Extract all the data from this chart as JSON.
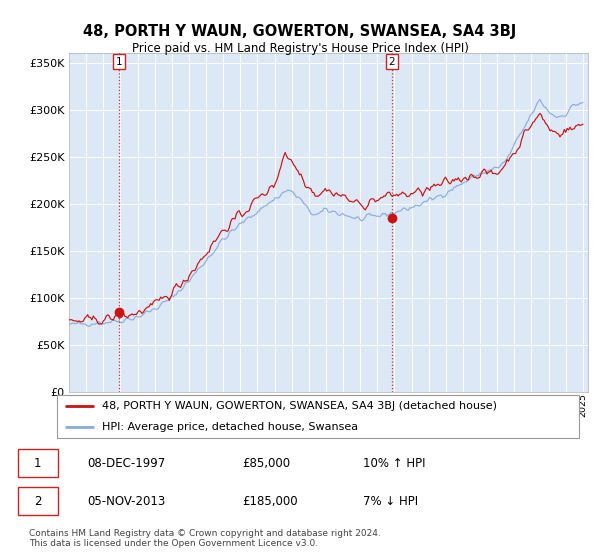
{
  "title": "48, PORTH Y WAUN, GOWERTON, SWANSEA, SA4 3BJ",
  "subtitle": "Price paid vs. HM Land Registry's House Price Index (HPI)",
  "legend_line1": "48, PORTH Y WAUN, GOWERTON, SWANSEA, SA4 3BJ (detached house)",
  "legend_line2": "HPI: Average price, detached house, Swansea",
  "transaction1_date": "08-DEC-1997",
  "transaction1_price": "£85,000",
  "transaction1_hpi": "10% ↑ HPI",
  "transaction2_date": "05-NOV-2013",
  "transaction2_price": "£185,000",
  "transaction2_hpi": "7% ↓ HPI",
  "footer": "Contains HM Land Registry data © Crown copyright and database right 2024.\nThis data is licensed under the Open Government Licence v3.0.",
  "hpi_color": "#88aadd",
  "price_color": "#cc1111",
  "marker_color": "#cc1111",
  "vline_color": "#cc1111",
  "plot_bg": "#dce8f5",
  "ylim": [
    0,
    360000
  ],
  "yticks": [
    0,
    50000,
    100000,
    150000,
    200000,
    250000,
    300000,
    350000
  ],
  "transaction1_year": 1997.92,
  "transaction1_value": 85000,
  "transaction2_year": 2013.84,
  "transaction2_value": 185000,
  "xmin": 1995,
  "xmax": 2025.3
}
